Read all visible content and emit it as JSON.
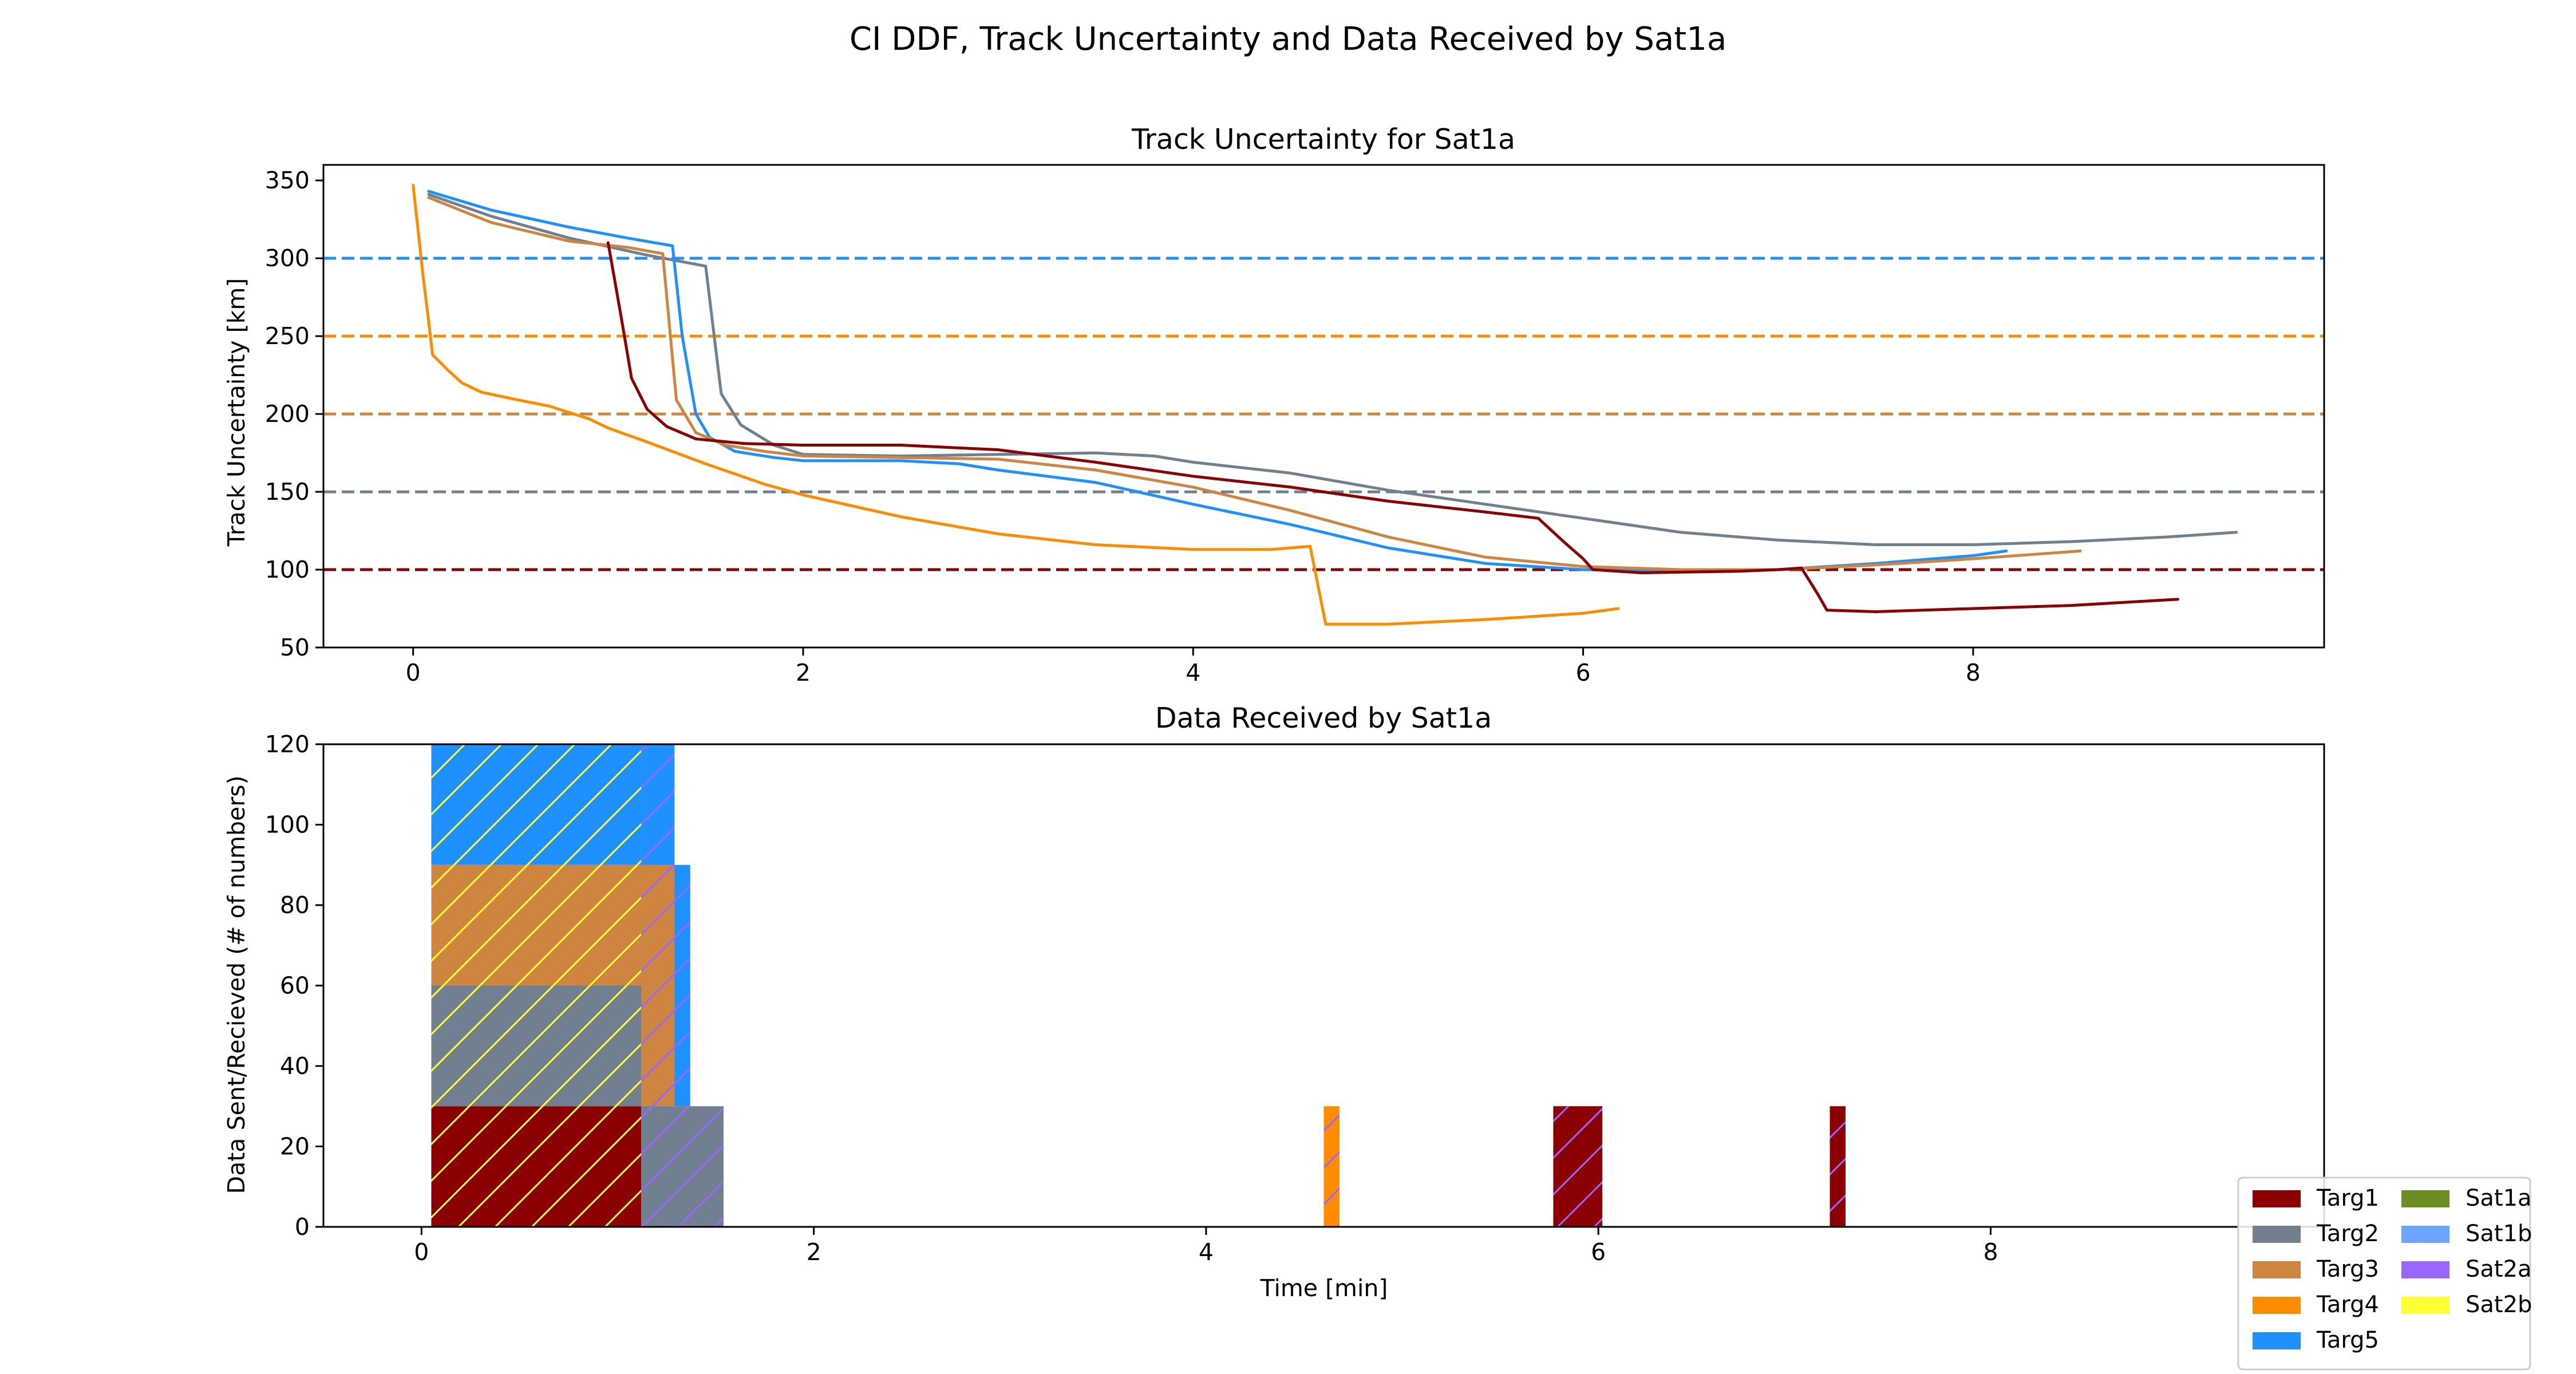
{
  "suptitle": "CI DDF, Track Uncertainty and Data Received by Sat1a",
  "chart_data": [
    {
      "type": "line",
      "title": "Track Uncertainty for Sat1a",
      "xlabel": "",
      "ylabel": "Track Uncertainty [km]",
      "xlim": [
        -0.46,
        9.8
      ],
      "ylim": [
        50,
        360
      ],
      "xticks": [
        0,
        2,
        4,
        6,
        8
      ],
      "yticks": [
        50,
        100,
        150,
        200,
        250,
        300,
        350
      ],
      "grid": false,
      "thresholds": [
        {
          "y": 300,
          "color": "#1E90FF"
        },
        {
          "y": 250,
          "color": "#FF8C00"
        },
        {
          "y": 200,
          "color": "#CD853F"
        },
        {
          "y": 150,
          "color": "#708090"
        },
        {
          "y": 100,
          "color": "#8B0000"
        }
      ],
      "series": [
        {
          "color": "#708090",
          "points": [
            [
              0.08,
              341
            ],
            [
              0.4,
              327
            ],
            [
              0.8,
              313
            ],
            [
              1.2,
              302
            ],
            [
              1.5,
              295
            ],
            [
              1.58,
              213
            ],
            [
              1.68,
              193
            ],
            [
              1.85,
              180
            ],
            [
              2.0,
              174
            ],
            [
              2.5,
              173
            ],
            [
              3.0,
              174
            ],
            [
              3.5,
              175
            ],
            [
              3.8,
              173
            ],
            [
              4.0,
              169
            ],
            [
              4.5,
              162
            ],
            [
              5.0,
              151
            ],
            [
              5.5,
              142
            ],
            [
              6.0,
              133
            ],
            [
              6.5,
              124
            ],
            [
              7.0,
              119
            ],
            [
              7.5,
              116
            ],
            [
              8.0,
              116
            ],
            [
              8.5,
              118
            ],
            [
              9.0,
              121
            ],
            [
              9.35,
              124
            ]
          ]
        },
        {
          "color": "#1E90FF",
          "points": [
            [
              0.08,
              343
            ],
            [
              0.4,
              331
            ],
            [
              0.8,
              320
            ],
            [
              1.1,
              313
            ],
            [
              1.33,
              308
            ],
            [
              1.38,
              250
            ],
            [
              1.45,
              200
            ],
            [
              1.52,
              185
            ],
            [
              1.65,
              176
            ],
            [
              1.85,
              172
            ],
            [
              2.0,
              170
            ],
            [
              2.5,
              170
            ],
            [
              2.8,
              168
            ],
            [
              3.0,
              164
            ],
            [
              3.5,
              156
            ],
            [
              4.0,
              142
            ],
            [
              4.5,
              129
            ],
            [
              5.0,
              114
            ],
            [
              5.5,
              104
            ],
            [
              6.0,
              100
            ],
            [
              6.5,
              99
            ],
            [
              7.0,
              100
            ],
            [
              7.5,
              104
            ],
            [
              8.0,
              109
            ],
            [
              8.17,
              112
            ]
          ]
        },
        {
          "color": "#CD853F",
          "points": [
            [
              0.08,
              339
            ],
            [
              0.4,
              323
            ],
            [
              0.8,
              311
            ],
            [
              1.1,
              307
            ],
            [
              1.28,
              303
            ],
            [
              1.35,
              209
            ],
            [
              1.45,
              188
            ],
            [
              1.6,
              180
            ],
            [
              1.8,
              176
            ],
            [
              2.0,
              173
            ],
            [
              2.5,
              172
            ],
            [
              3.0,
              171
            ],
            [
              3.5,
              164
            ],
            [
              4.0,
              153
            ],
            [
              4.5,
              138
            ],
            [
              5.0,
              121
            ],
            [
              5.5,
              108
            ],
            [
              6.0,
              102
            ],
            [
              6.5,
              100
            ],
            [
              7.0,
              100
            ],
            [
              7.5,
              103
            ],
            [
              8.0,
              107
            ],
            [
              8.55,
              112
            ]
          ]
        },
        {
          "color": "#8B0000",
          "points": [
            [
              1.0,
              310
            ],
            [
              1.07,
              260
            ],
            [
              1.12,
              223
            ],
            [
              1.2,
              203
            ],
            [
              1.3,
              192
            ],
            [
              1.45,
              184
            ],
            [
              1.7,
              181
            ],
            [
              2.0,
              180
            ],
            [
              2.5,
              180
            ],
            [
              3.0,
              177
            ],
            [
              3.5,
              169
            ],
            [
              4.0,
              160
            ],
            [
              4.5,
              153
            ],
            [
              5.0,
              144
            ],
            [
              5.5,
              137
            ],
            [
              5.77,
              133
            ],
            [
              5.9,
              118
            ],
            [
              6.0,
              107
            ],
            [
              6.05,
              100
            ],
            [
              6.3,
              98
            ],
            [
              6.8,
              99
            ],
            [
              7.0,
              100
            ],
            [
              7.12,
              101
            ],
            [
              7.2,
              85
            ],
            [
              7.25,
              74
            ],
            [
              7.5,
              73
            ],
            [
              8.0,
              75
            ],
            [
              8.5,
              77
            ],
            [
              9.05,
              81
            ]
          ]
        },
        {
          "color": "#FF8C00",
          "points": [
            [
              0.0,
              347
            ],
            [
              0.05,
              290
            ],
            [
              0.1,
              238
            ],
            [
              0.18,
              228
            ],
            [
              0.25,
              220
            ],
            [
              0.35,
              214
            ],
            [
              0.5,
              210
            ],
            [
              0.7,
              205
            ],
            [
              0.9,
              197
            ],
            [
              1.0,
              191
            ],
            [
              1.2,
              182
            ],
            [
              1.5,
              168
            ],
            [
              1.8,
              155
            ],
            [
              2.0,
              148
            ],
            [
              2.5,
              134
            ],
            [
              3.0,
              123
            ],
            [
              3.5,
              116
            ],
            [
              4.0,
              113
            ],
            [
              4.4,
              113
            ],
            [
              4.6,
              115
            ],
            [
              4.68,
              65
            ],
            [
              5.0,
              65
            ],
            [
              5.5,
              68
            ],
            [
              6.0,
              72
            ],
            [
              6.18,
              75
            ]
          ]
        }
      ]
    },
    {
      "type": "bar",
      "title": "Data Received by Sat1a",
      "xlabel": "Time [min]",
      "ylabel": "Data Sent/Recieved (# of numbers)",
      "xlim": [
        -0.5,
        9.7
      ],
      "ylim": [
        0,
        120
      ],
      "xticks": [
        0,
        2,
        4,
        6,
        8
      ],
      "yticks": [
        0,
        20,
        40,
        60,
        80,
        100,
        120
      ],
      "grid": false,
      "legend_position": "lower-right",
      "legend": [
        {
          "label": "Targ1",
          "color": "#8B0000"
        },
        {
          "label": "Targ2",
          "color": "#708090"
        },
        {
          "label": "Targ3",
          "color": "#CD853F"
        },
        {
          "label": "Targ4",
          "color": "#FF8C00"
        },
        {
          "label": "Targ5",
          "color": "#1E90FF"
        },
        {
          "label": "Sat1a",
          "color": "#6B8E23"
        },
        {
          "label": "Sat1b",
          "color": "#6AA5FF"
        },
        {
          "label": "Sat2a",
          "color": "#9966FF"
        },
        {
          "label": "Sat2b",
          "color": "#FFFF33"
        }
      ],
      "bars": [
        {
          "x0": 0.05,
          "x1": 1.12,
          "y0": 0,
          "y1": 30,
          "color": "#8B0000",
          "hatch": "#FFFF33"
        },
        {
          "x0": 0.05,
          "x1": 1.12,
          "y0": 30,
          "y1": 60,
          "color": "#708090",
          "hatch": "#FFFF33"
        },
        {
          "x0": 0.05,
          "x1": 1.12,
          "y0": 60,
          "y1": 90,
          "color": "#CD853F",
          "hatch": "#FFFF33"
        },
        {
          "x0": 0.05,
          "x1": 1.12,
          "y0": 90,
          "y1": 120,
          "color": "#1E90FF",
          "hatch": "#FFFF33"
        },
        {
          "x0": 1.12,
          "x1": 1.54,
          "y0": 0,
          "y1": 30,
          "color": "#708090",
          "hatch": "#9966FF"
        },
        {
          "x0": 1.12,
          "x1": 1.37,
          "y0": 30,
          "y1": 60,
          "color": "#1E90FF",
          "hatch": "#9966FF"
        },
        {
          "x0": 1.12,
          "x1": 1.29,
          "y0": 30,
          "y1": 60,
          "color": "#CD853F",
          "hatch": "#9966FF"
        },
        {
          "x0": 1.12,
          "x1": 1.37,
          "y0": 60,
          "y1": 90,
          "color": "#1E90FF",
          "hatch": "#9966FF"
        },
        {
          "x0": 1.12,
          "x1": 1.29,
          "y0": 60,
          "y1": 90,
          "color": "#CD853F",
          "hatch": "#9966FF"
        },
        {
          "x0": 1.12,
          "x1": 1.29,
          "y0": 90,
          "y1": 120,
          "color": "#1E90FF",
          "hatch": "#9966FF"
        },
        {
          "x0": 4.6,
          "x1": 4.68,
          "y0": 0,
          "y1": 30,
          "color": "#FF8C00",
          "hatch": "#9966FF"
        },
        {
          "x0": 5.77,
          "x1": 6.02,
          "y0": 0,
          "y1": 30,
          "color": "#8B0000",
          "hatch": "#9966FF"
        },
        {
          "x0": 7.18,
          "x1": 7.26,
          "y0": 0,
          "y1": 30,
          "color": "#8B0000",
          "hatch": "#9966FF"
        }
      ]
    }
  ]
}
